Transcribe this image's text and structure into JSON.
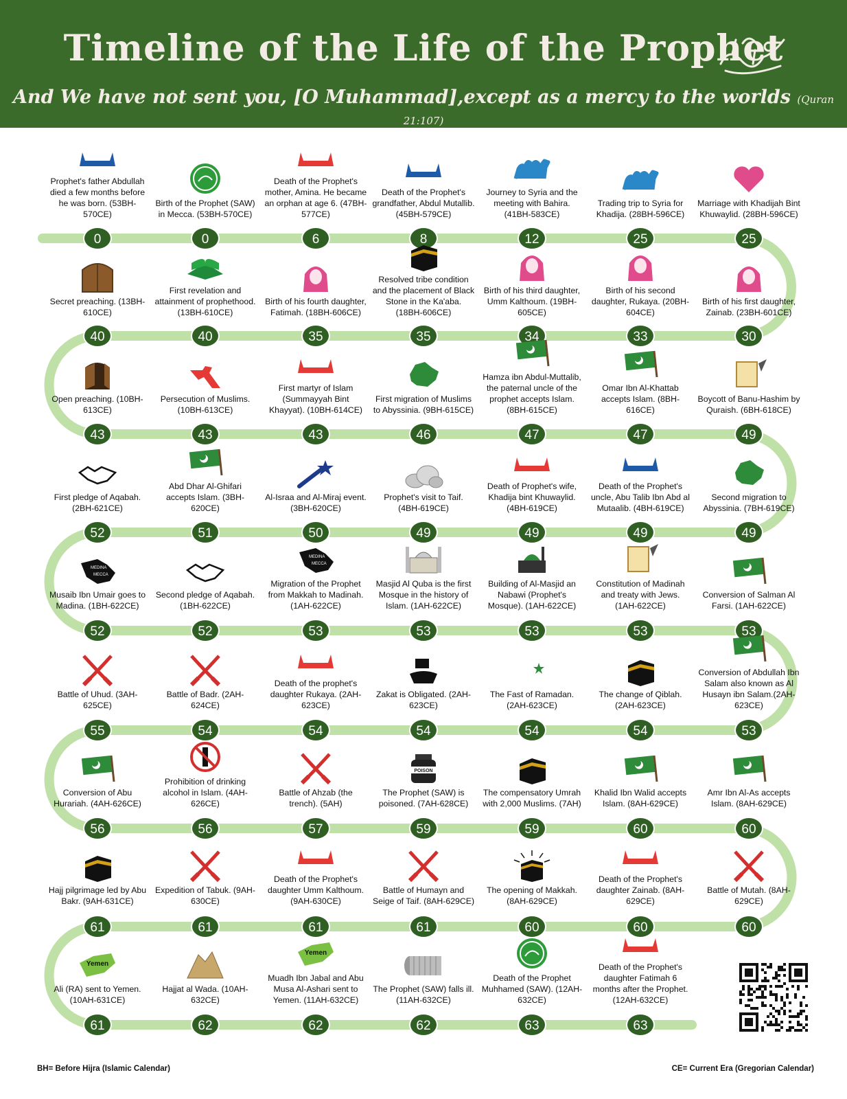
{
  "header": {
    "title": "Timeline of the Life of the Prophet",
    "subtitle": "And We have not sent you, [O Muhammad],except as a mercy to the worlds",
    "subtitle_ref": "(Quran 21:107)"
  },
  "legend": {
    "bh": "BH= Before Hijra (Islamic Calendar)",
    "ce": "CE= Current Era (Gregorian Calendar)"
  },
  "colors": {
    "header": "#3a6b2a",
    "track": "#bfe0a6",
    "badge": "#2f5f23",
    "red_banner": "#e53935",
    "blue_banner": "#1e5aa8",
    "pink": "#e04b8c"
  },
  "rows": [
    [
      {
        "age": "0",
        "text": "Prophet's father Abdullah died a few months before he was born. (53BH-570CE)",
        "icon": "blue-banner-icon"
      },
      {
        "age": "0",
        "text": "Birth of the Prophet (SAW) in Mecca. (53BH-570CE)",
        "icon": "green-seal-icon"
      },
      {
        "age": "6",
        "text": "Death of the Prophet's mother, Amina. He became an orphan at age 6. (47BH-577CE)",
        "icon": "red-banner-icon"
      },
      {
        "age": "8",
        "text": "Death of the Prophet's grandfather, Abdul Mutallib. (45BH-579CE)",
        "icon": "blue-banner-icon"
      },
      {
        "age": "12",
        "text": "Journey to Syria and the meeting with Bahira. (41BH-583CE)",
        "icon": "camel-icon"
      },
      {
        "age": "25",
        "text": "Trading trip to Syria for Khadija. (28BH-596CE)",
        "icon": "camel-icon"
      },
      {
        "age": "25",
        "text": "Marriage with Khadijah Bint Khuwaylid. (28BH-596CE)",
        "icon": "heart-icon"
      }
    ],
    [
      {
        "age": "40",
        "text": "Secret preaching. (13BH-610CE)",
        "icon": "closed-door-icon"
      },
      {
        "age": "40",
        "text": "First revelation and attainment of prophethood. (13BH-610CE)",
        "icon": "quran-icon"
      },
      {
        "age": "35",
        "text": "Birth of his fourth daughter, Fatimah. (18BH-606CE)",
        "icon": "hijab-icon"
      },
      {
        "age": "35",
        "text": "Resolved tribe condition and the placement of Black Stone in the Ka'aba. (18BH-606CE)",
        "icon": "kaaba-icon"
      },
      {
        "age": "34",
        "text": "Birth of his third daughter, Umm Kalthoum. (19BH-605CE)",
        "icon": "hijab-icon"
      },
      {
        "age": "33",
        "text": "Birth of his second daughter, Rukaya. (20BH-604CE)",
        "icon": "hijab-icon"
      },
      {
        "age": "30",
        "text": "Birth of his first daughter, Zainab. (23BH-601CE)",
        "icon": "hijab-icon"
      }
    ],
    [
      {
        "age": "43",
        "text": "Open preaching. (10BH-613CE)",
        "icon": "open-door-icon"
      },
      {
        "age": "43",
        "text": "Persecution of Muslims. (10BH-613CE)",
        "icon": "red-mark-icon"
      },
      {
        "age": "43",
        "text": "First martyr of Islam (Summayyah Bint Khayyat). (10BH-614CE)",
        "icon": "red-banner-icon"
      },
      {
        "age": "46",
        "text": "First migration of Muslims to Abyssinia. (9BH-615CE)",
        "icon": "map-ethiopia-icon"
      },
      {
        "age": "47",
        "text": "Hamza ibn Abdul-Muttalib, the paternal uncle of the prophet accepts Islam. (8BH-615CE)",
        "icon": "flag-icon"
      },
      {
        "age": "47",
        "text": "Omar Ibn Al-Khattab accepts Islam. (8BH-616CE)",
        "icon": "flag-icon"
      },
      {
        "age": "49",
        "text": "Boycott of Banu-Hashim by Quraish. (6BH-618CE)",
        "icon": "scroll-icon"
      }
    ],
    [
      {
        "age": "52",
        "text": "First pledge of Aqabah. (2BH-621CE)",
        "icon": "handshake-icon"
      },
      {
        "age": "51",
        "text": "Abd Dhar Al-Ghifari accepts Islam. (3BH-620CE)",
        "icon": "flag-icon"
      },
      {
        "age": "50",
        "text": "Al-Israa and Al-Miraj event. (3BH-620CE)",
        "icon": "shooting-star-icon"
      },
      {
        "age": "49",
        "text": "Prophet's visit to Taif. (4BH-619CE)",
        "icon": "rocks-icon"
      },
      {
        "age": "49",
        "text": "Death of Prophet's wife, Khadija bint Khuwaylid. (4BH-619CE)",
        "icon": "red-banner-icon"
      },
      {
        "age": "49",
        "text": "Death of the Prophet's uncle, Abu Talib Ibn Abd al Mutaalib. (4BH-619CE)",
        "icon": "blue-banner-icon"
      },
      {
        "age": "49",
        "text": "Second migration to Abyssinia. (7BH-619CE)",
        "icon": "map-ethiopia-icon"
      }
    ],
    [
      {
        "age": "52",
        "text": "Musaib Ibn Umair goes to Madina. (1BH-622CE)",
        "icon": "map-arabia-icon",
        "map_labels": [
          "MEDINA",
          "MECCA"
        ]
      },
      {
        "age": "52",
        "text": "Second pledge of Aqabah. (1BH-622CE)",
        "icon": "handshake-icon"
      },
      {
        "age": "53",
        "text": "Migration of the Prophet from Makkah to Madinah. (1AH-622CE)",
        "icon": "map-arabia-icon",
        "map_labels": [
          "MEDINA",
          "MECCA"
        ]
      },
      {
        "age": "53",
        "text": "Masjid Al Quba is the first Mosque in the history of Islam. (1AH-622CE)",
        "icon": "mosque-icon"
      },
      {
        "age": "53",
        "text": "Building of Al-Masjid an Nabawi (Prophet's Mosque). (1AH-622CE)",
        "icon": "green-dome-icon"
      },
      {
        "age": "53",
        "text": "Constitution of Madinah and treaty with Jews. (1AH-622CE)",
        "icon": "scroll-icon"
      },
      {
        "age": "53",
        "text": "Conversion of Salman Al Farsi. (1AH-622CE)",
        "icon": "flag-icon"
      }
    ],
    [
      {
        "age": "55",
        "text": "Battle of Uhud. (3AH-625CE)",
        "icon": "swords-icon"
      },
      {
        "age": "54",
        "text": "Battle of Badr. (2AH-624CE)",
        "icon": "swords-icon"
      },
      {
        "age": "54",
        "text": "Death of the prophet's daughter Rukaya. (2AH-623CE)",
        "icon": "red-banner-icon"
      },
      {
        "age": "54",
        "text": "Zakat is Obligated. (2AH-623CE)",
        "icon": "zakat-icon"
      },
      {
        "age": "54",
        "text": "The Fast of Ramadan. (2AH-623CE)",
        "icon": "crescent-icon"
      },
      {
        "age": "54",
        "text": "The change of Qiblah. (2AH-623CE)",
        "icon": "kaaba-icon"
      },
      {
        "age": "53",
        "text": "Conversion of Abdullah Ibn Salam also known as Al Husayn ibn Salam.(2AH-623CE)",
        "icon": "flag-icon"
      }
    ],
    [
      {
        "age": "56",
        "text": "Conversion of Abu Hurariah. (4AH-626CE)",
        "icon": "flag-icon"
      },
      {
        "age": "56",
        "text": "Prohibition of drinking alcohol in Islam. (4AH-626CE)",
        "icon": "no-alcohol-icon"
      },
      {
        "age": "57",
        "text": "Battle of Ahzab (the trench). (5AH)",
        "icon": "swords-icon"
      },
      {
        "age": "59",
        "text": "The Prophet (SAW) is poisoned. (7AH-628CE)",
        "icon": "poison-icon",
        "icon_label": "POISON"
      },
      {
        "age": "59",
        "text": "The compensatory Umrah with 2,000 Muslims. (7AH)",
        "icon": "kaaba-icon"
      },
      {
        "age": "60",
        "text": "Khalid Ibn Walid accepts Islam. (8AH-629CE)",
        "icon": "flag-icon"
      },
      {
        "age": "60",
        "text": "Amr Ibn Al-As accepts Islam. (8AH-629CE)",
        "icon": "flag-icon"
      }
    ],
    [
      {
        "age": "61",
        "text": "Hajj pilgrimage led by Abu Bakr. (9AH-631CE)",
        "icon": "kaaba-icon"
      },
      {
        "age": "61",
        "text": "Expedition of Tabuk. (9AH-630CE)",
        "icon": "swords-icon"
      },
      {
        "age": "61",
        "text": "Death of the Prophet's daughter Umm Kalthoum. (9AH-630CE)",
        "icon": "red-banner-icon"
      },
      {
        "age": "61",
        "text": "Battle of Humayn and Seige of Taif. (8AH-629CE)",
        "icon": "swords-icon"
      },
      {
        "age": "60",
        "text": "The opening of Makkah. (8AH-629CE)",
        "icon": "kaaba-rays-icon"
      },
      {
        "age": "60",
        "text": "Death of the Prophet's daughter Zainab. (8AH-629CE)",
        "icon": "red-banner-icon"
      },
      {
        "age": "60",
        "text": "Battle of Mutah. (8AH-629CE)",
        "icon": "swords-icon"
      }
    ],
    [
      {
        "age": "61",
        "text": "Ali (RA) sent to Yemen. (10AH-631CE)",
        "icon": "map-yemen-icon",
        "icon_label": "Yemen"
      },
      {
        "age": "62",
        "text": "Hajjat al Wada. (10AH-632CE)",
        "icon": "mountain-icon"
      },
      {
        "age": "62",
        "text": "Muadh Ibn Jabal and Abu Musa Al-Ashari sent to Yemen. (11AH-632CE)",
        "icon": "map-yemen-icon",
        "icon_label": "Yemen"
      },
      {
        "age": "62",
        "text": "The Prophet (SAW) falls ill. (11AH-632CE)",
        "icon": "mat-icon"
      },
      {
        "age": "63",
        "text": "Death of the Prophet Muhhamed (SAW). (12AH-632CE)",
        "icon": "green-seal-icon"
      },
      {
        "age": "63",
        "text": "Death of the Prophet's daughter Fatimah 6 months after the Prophet. (12AH-632CE)",
        "icon": "red-banner-icon"
      }
    ]
  ]
}
